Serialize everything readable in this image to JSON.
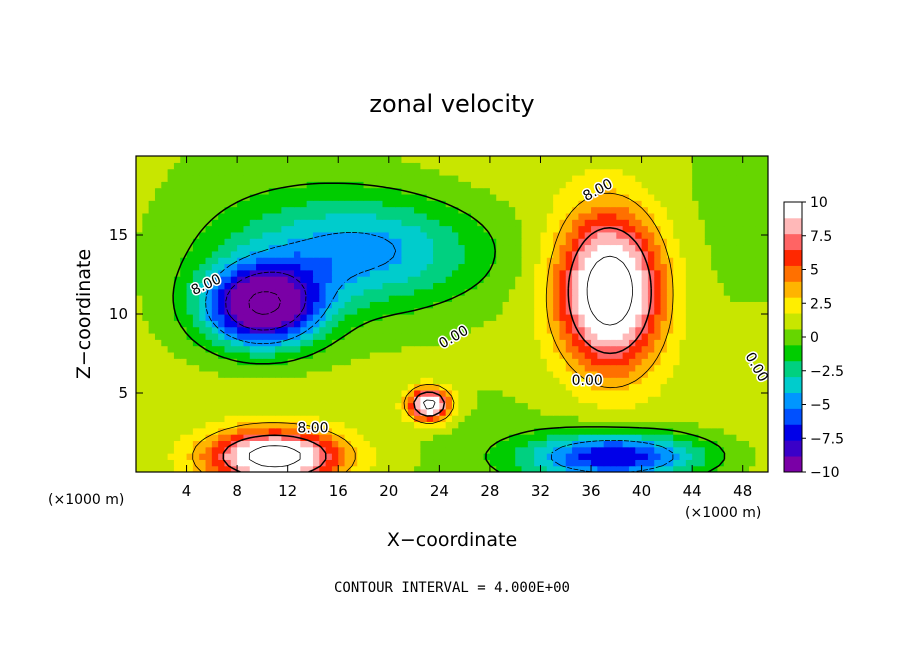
{
  "chart_data": {
    "type": "heatmap",
    "title": "zonal velocity",
    "xlabel": "X−coordinate",
    "ylabel": "Z−coordinate",
    "x_unit_label": "(×1000 m)",
    "z_unit_label": "(×1000 m)",
    "footer": "CONTOUR INTERVAL = 4.000E+00",
    "xlim": [
      0,
      50
    ],
    "ylim": [
      0,
      20
    ],
    "x_ticks": [
      4,
      8,
      12,
      16,
      20,
      24,
      28,
      32,
      36,
      40,
      44,
      48
    ],
    "y_ticks": [
      5,
      10,
      15
    ],
    "colorbar": {
      "range": [
        -10,
        10
      ],
      "ticks": [
        "10",
        "7.5",
        "5",
        "2.5",
        "0",
        "−2.5",
        "−5",
        "−7.5",
        "−10"
      ],
      "tick_values": [
        10,
        7.5,
        5,
        2.5,
        0,
        -2.5,
        -5,
        -7.5,
        -10
      ],
      "colors": [
        "#7a00a6",
        "#3a00c8",
        "#0000e8",
        "#0050ff",
        "#0096ff",
        "#00cccc",
        "#00d080",
        "#00cc00",
        "#66d600",
        "#c8e600",
        "#ffee00",
        "#ffb400",
        "#ff7000",
        "#ff2800",
        "#ff6464",
        "#ffb8b8",
        "#ffffff"
      ]
    },
    "contour_labels": [
      {
        "text": "8.00",
        "x": 36.7,
        "z": 17.6,
        "angle": -28
      },
      {
        "text": "0.00",
        "x": 25.3,
        "z": 8.3,
        "angle": -30
      },
      {
        "text": "0.00",
        "x": 35.7,
        "z": 5.5,
        "angle": 0
      },
      {
        "text": "8.00",
        "x": 14.0,
        "z": 2.5,
        "angle": 0
      },
      {
        "text": "8.00",
        "x": 5.7,
        "z": 11.6,
        "angle": -25
      },
      {
        "text": "0.00",
        "x": 48.8,
        "z": 6.5,
        "angle": 60
      }
    ],
    "features": [
      {
        "name": "jet-core-positive",
        "x": 37.5,
        "z": 11.5,
        "sx": 4.0,
        "sy": 4.8,
        "value": 13
      },
      {
        "name": "negative-core-upper-left",
        "x": 10.0,
        "z": 10.5,
        "sx": 4.5,
        "sy": 2.5,
        "value": -13
      },
      {
        "name": "negative-band-upper",
        "x": 18.0,
        "z": 14.0,
        "sx": 10.0,
        "sy": 3.5,
        "value": -6
      },
      {
        "name": "positive-low-left",
        "x": 11.0,
        "z": 1.0,
        "sx": 5.0,
        "sy": 1.6,
        "value": 12
      },
      {
        "name": "positive-small-center",
        "x": 23.2,
        "z": 4.3,
        "sx": 1.6,
        "sy": 1.0,
        "value": 12
      },
      {
        "name": "negative-low-right",
        "x": 38.0,
        "z": 1.0,
        "sx": 7.0,
        "sy": 1.5,
        "value": -9
      }
    ]
  }
}
